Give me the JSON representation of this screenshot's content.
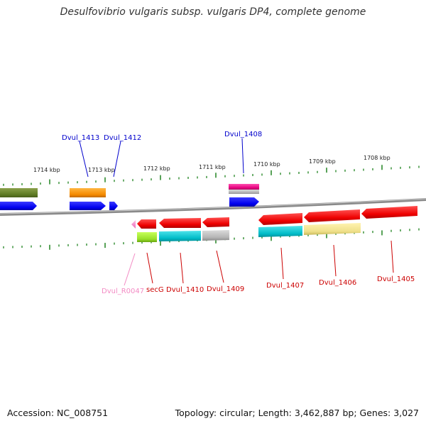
{
  "title": "Desulfovibrio vulgaris subsp. vulgaris DP4, complete genome",
  "footer": {
    "accession": "Accession: NC_008751",
    "topology": "Topology: circular; Length: 3,462,887 bp; Genes: 3,027"
  },
  "colors": {
    "forward_label": "#0000cc",
    "reverse_label": "#cc0000",
    "rna_label": "#f38bc4",
    "backbone": "#8a8a8a",
    "ticks": "#2e8b2e"
  },
  "kbp_ticks": [
    {
      "label": "1714 kbp"
    },
    {
      "label": "1713 kbp"
    },
    {
      "label": "1712 kbp"
    },
    {
      "label": "1711 kbp"
    },
    {
      "label": "1710 kbp"
    },
    {
      "label": "1709 kbp"
    },
    {
      "label": "1708 kbp"
    }
  ],
  "labels": [
    {
      "text": "Dvul_1413",
      "strand": "forward"
    },
    {
      "text": "Dvul_1412",
      "strand": "forward"
    },
    {
      "text": "Dvul_1408",
      "strand": "forward"
    },
    {
      "text": "Dvul_R0047",
      "strand": "rna"
    },
    {
      "text": "secG",
      "strand": "reverse"
    },
    {
      "text": "Dvul_1410",
      "strand": "reverse"
    },
    {
      "text": "Dvul_1409",
      "strand": "reverse"
    },
    {
      "text": "Dvul_1407",
      "strand": "reverse"
    },
    {
      "text": "Dvul_1406",
      "strand": "reverse"
    },
    {
      "text": "Dvul_1405",
      "strand": "reverse"
    }
  ]
}
